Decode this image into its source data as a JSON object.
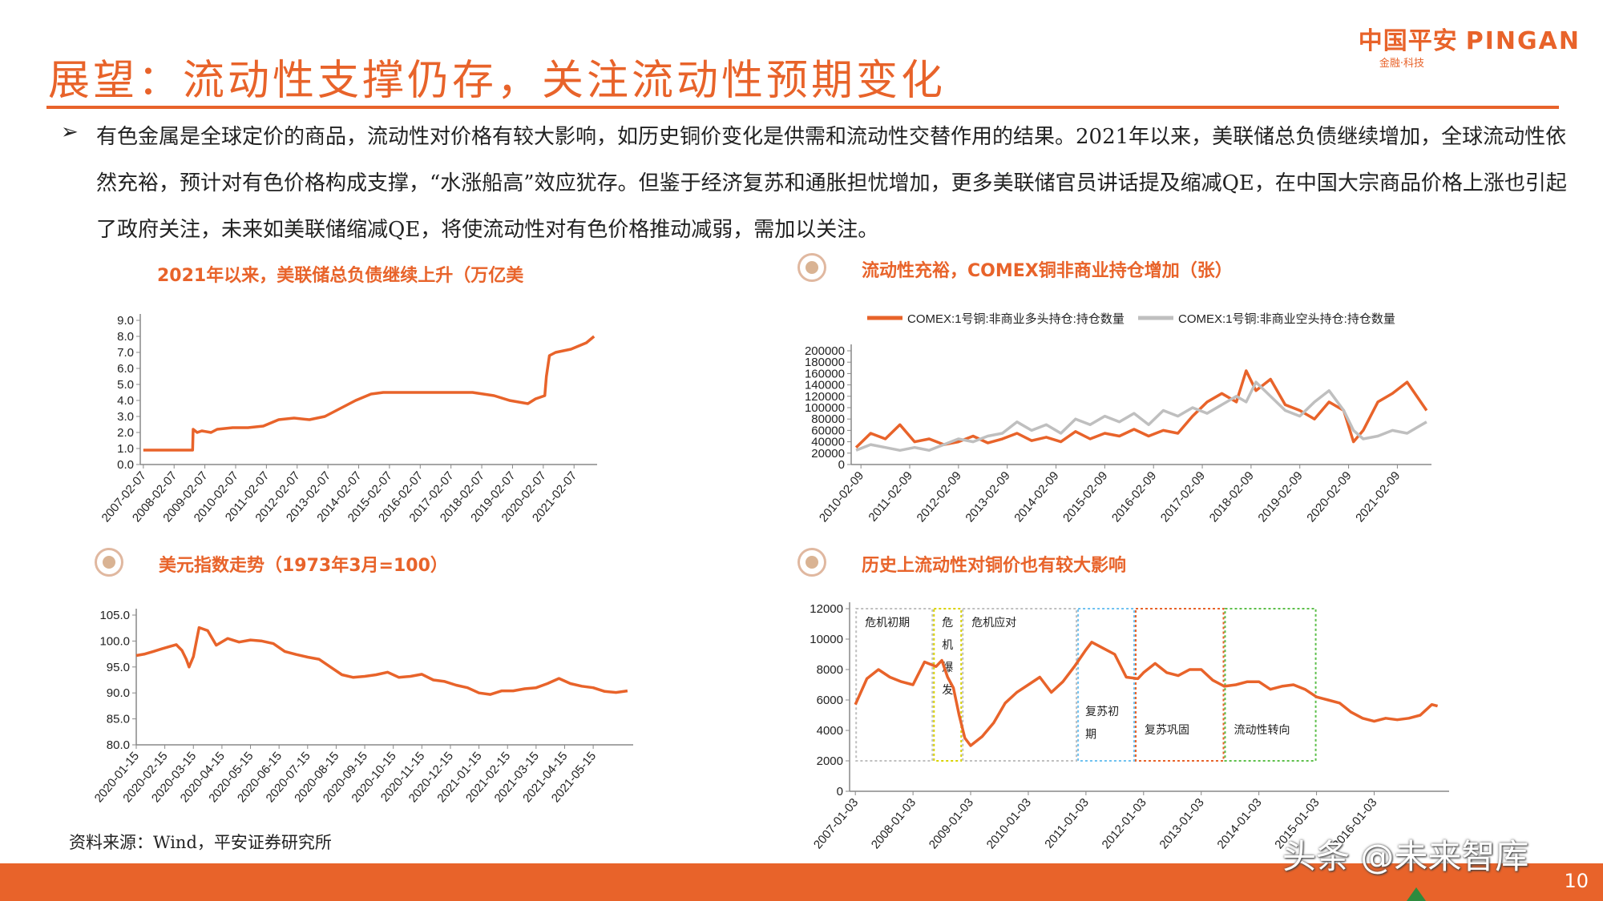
{
  "slide": {
    "title": "展望：流动性支撑仍存，关注流动性预期变化",
    "logo_cn": "中国平安",
    "logo_en": "PINGAN",
    "logo_sub": "金融·科技",
    "bullet_text": "有色金属是全球定价的商品，流动性对价格有较大影响，如历史铜价变化是供需和流动性交替作用的结果。2021年以来，美联储总负债继续增加，全球流动性依然充裕，预计对有色价格构成支撑，“水涨船高”效应犹存。但鉴于经济复苏和通胀担忧增加，更多美联储官员讲话提及缩减QE，在中国大宗商品价格上涨也引起了政府关注，未来如美联储缩减QE，将使流动性对有色价格推动减弱，需加以关注。",
    "source": "资料来源：Wind，平安证券研究所",
    "page_number": "10",
    "watermark": "头条 @未来智库",
    "accent": "#E8632A",
    "gray": "#BFBFBF"
  },
  "panel_titles": {
    "fed": "2021年以来，美联储总负债继续上升（万亿美",
    "comex": "流动性充裕，COMEX铜非商业持仓增加（张）",
    "dxy": "美元指数走势（1973年3月=100）",
    "copper": "历史上流动性对铜价也有较大影响"
  },
  "chart_data": [
    {
      "id": "fed",
      "type": "line",
      "title": "2021年以来，美联储总负债继续上升（万亿美",
      "xlabel": "",
      "ylabel": "",
      "ylim": [
        0,
        9
      ],
      "yticks": [
        "0.0",
        "1.0",
        "2.0",
        "3.0",
        "4.0",
        "5.0",
        "6.0",
        "7.0",
        "8.0",
        "9.0"
      ],
      "xticks": [
        "2007-02-07",
        "2008-02-07",
        "2009-02-07",
        "2010-02-07",
        "2011-02-07",
        "2012-02-07",
        "2013-02-07",
        "2014-02-07",
        "2015-02-07",
        "2016-02-07",
        "2017-02-07",
        "2018-02-07",
        "2019-02-07",
        "2020-02-07",
        "2021-02-07"
      ],
      "x": [
        2007.1,
        2008.0,
        2008.7,
        2008.72,
        2008.85,
        2009.0,
        2009.3,
        2009.5,
        2010.0,
        2010.5,
        2011.0,
        2011.5,
        2012.0,
        2012.5,
        2013.0,
        2013.5,
        2014.0,
        2014.5,
        2014.9,
        2015.5,
        2016.0,
        2017.0,
        2017.8,
        2018.5,
        2019.0,
        2019.6,
        2019.85,
        2020.0,
        2020.15,
        2020.2,
        2020.3,
        2020.5,
        2021.0,
        2021.5,
        2021.75
      ],
      "series": [
        {
          "values": [
            0.9,
            0.9,
            0.9,
            2.2,
            2.0,
            2.1,
            2.0,
            2.2,
            2.3,
            2.3,
            2.4,
            2.8,
            2.9,
            2.8,
            3.0,
            3.5,
            4.0,
            4.4,
            4.5,
            4.5,
            4.5,
            4.5,
            4.5,
            4.3,
            4.0,
            3.8,
            4.1,
            4.2,
            4.3,
            5.5,
            6.8,
            7.0,
            7.2,
            7.6,
            8.0
          ],
          "color": "#E8632A"
        }
      ]
    },
    {
      "id": "comex",
      "type": "line",
      "title": "流动性充裕，COMEX铜非商业持仓增加（张）",
      "xlabel": "",
      "ylabel": "",
      "ylim": [
        0,
        200000
      ],
      "yticks": [
        "0",
        "20000",
        "40000",
        "60000",
        "80000",
        "100000",
        "120000",
        "140000",
        "160000",
        "180000",
        "200000"
      ],
      "xticks": [
        "2010-02-09",
        "2011-02-09",
        "2012-02-09",
        "2013-02-09",
        "2014-02-09",
        "2015-02-09",
        "2016-02-09",
        "2017-02-09",
        "2018-02-09",
        "2019-02-09",
        "2020-02-09",
        "2021-02-09"
      ],
      "legend_placement": "top",
      "x": [
        2010.0,
        2010.3,
        2010.6,
        2010.9,
        2011.2,
        2011.5,
        2011.8,
        2012.1,
        2012.4,
        2012.7,
        2013.0,
        2013.3,
        2013.6,
        2013.9,
        2014.2,
        2014.5,
        2014.8,
        2015.1,
        2015.4,
        2015.7,
        2016.0,
        2016.3,
        2016.6,
        2016.9,
        2017.2,
        2017.5,
        2017.8,
        2018.0,
        2018.2,
        2018.5,
        2018.8,
        2019.1,
        2019.4,
        2019.7,
        2020.0,
        2020.2,
        2020.4,
        2020.7,
        2021.0,
        2021.3,
        2021.5,
        2021.7
      ],
      "series": [
        {
          "name": "COMEX:1号铜:非商业多头持仓:持仓数量",
          "color": "#E8632A",
          "values": [
            30000,
            55000,
            45000,
            70000,
            40000,
            45000,
            35000,
            40000,
            50000,
            38000,
            45000,
            55000,
            42000,
            48000,
            40000,
            58000,
            45000,
            55000,
            50000,
            62000,
            50000,
            60000,
            55000,
            85000,
            110000,
            125000,
            110000,
            165000,
            130000,
            150000,
            105000,
            95000,
            80000,
            110000,
            95000,
            40000,
            60000,
            110000,
            125000,
            145000,
            120000,
            95000
          ]
        },
        {
          "name": "COMEX:1号铜:非商业空头持仓:持仓数量",
          "color": "#BFBFBF",
          "values": [
            25000,
            35000,
            30000,
            25000,
            30000,
            25000,
            35000,
            45000,
            40000,
            50000,
            55000,
            75000,
            60000,
            70000,
            55000,
            80000,
            70000,
            85000,
            75000,
            90000,
            70000,
            95000,
            85000,
            100000,
            90000,
            105000,
            120000,
            110000,
            145000,
            120000,
            95000,
            85000,
            110000,
            130000,
            95000,
            60000,
            45000,
            50000,
            60000,
            55000,
            65000,
            75000
          ]
        }
      ]
    },
    {
      "id": "dxy",
      "type": "line",
      "title": "美元指数走势（1973年3月=100）",
      "xlabel": "",
      "ylabel": "",
      "ylim": [
        80,
        105
      ],
      "yticks": [
        "80.0",
        "85.0",
        "90.0",
        "95.0",
        "100.0",
        "105.0"
      ],
      "xticks": [
        "2020-01-15",
        "2020-02-15",
        "2020-03-15",
        "2020-04-15",
        "2020-05-15",
        "2020-06-15",
        "2020-07-15",
        "2020-08-15",
        "2020-09-15",
        "2020-10-15",
        "2020-11-15",
        "2020-12-15",
        "2021-01-15",
        "2021-02-15",
        "2021-03-15",
        "2021-04-15",
        "2021-05-15"
      ],
      "x": [
        0.0,
        0.3,
        0.6,
        0.9,
        1.2,
        1.4,
        1.6,
        1.75,
        1.85,
        2.0,
        2.2,
        2.5,
        2.8,
        3.2,
        3.6,
        4.0,
        4.4,
        4.8,
        5.2,
        5.6,
        6.0,
        6.4,
        6.8,
        7.2,
        7.6,
        8.0,
        8.4,
        8.8,
        9.2,
        9.6,
        10.0,
        10.4,
        10.8,
        11.2,
        11.6,
        12.0,
        12.4,
        12.8,
        13.2,
        13.6,
        14.0,
        14.4,
        14.8,
        15.2,
        15.6,
        16.0,
        16.4,
        16.8,
        17.2
      ],
      "series": [
        {
          "values": [
            97.2,
            97.5,
            98.0,
            98.5,
            99.0,
            99.3,
            98.2,
            96.5,
            95.0,
            97.0,
            102.6,
            102.0,
            99.2,
            100.5,
            99.8,
            100.2,
            100.0,
            99.5,
            98.0,
            97.4,
            96.9,
            96.5,
            95.0,
            93.5,
            93.0,
            93.2,
            93.5,
            94.0,
            93.0,
            93.2,
            93.6,
            92.5,
            92.2,
            91.5,
            91.0,
            90.0,
            89.7,
            90.4,
            90.4,
            90.8,
            91.0,
            91.8,
            92.8,
            91.8,
            91.3,
            91.0,
            90.3,
            90.1,
            90.4
          ],
          "color": "#E8632A"
        }
      ]
    },
    {
      "id": "copper",
      "type": "line",
      "title": "历史上流动性对铜价也有较大影响",
      "xlabel": "",
      "ylabel": "",
      "ylim": [
        0,
        12000
      ],
      "yticks": [
        "0",
        "2000",
        "4000",
        "6000",
        "8000",
        "10000",
        "12000"
      ],
      "xticks": [
        "2007-01-03",
        "2008-01-03",
        "2009-01-03",
        "2010-01-03",
        "2011-01-03",
        "2012-01-03",
        "2013-01-03",
        "2014-01-03",
        "2015-01-03",
        "2016-01-03"
      ],
      "x": [
        2007.0,
        2007.2,
        2007.4,
        2007.6,
        2007.8,
        2008.0,
        2008.2,
        2008.4,
        2008.5,
        2008.6,
        2008.7,
        2008.8,
        2008.9,
        2009.0,
        2009.2,
        2009.4,
        2009.6,
        2009.8,
        2010.0,
        2010.2,
        2010.4,
        2010.6,
        2010.8,
        2011.0,
        2011.1,
        2011.3,
        2011.5,
        2011.7,
        2011.9,
        2012.0,
        2012.2,
        2012.4,
        2012.6,
        2012.8,
        2013.0,
        2013.2,
        2013.4,
        2013.6,
        2013.8,
        2014.0,
        2014.2,
        2014.4,
        2014.6,
        2014.8,
        2015.0,
        2015.2,
        2015.4,
        2015.6,
        2015.8,
        2016.0,
        2016.2,
        2016.4,
        2016.6,
        2016.8,
        2017.0,
        2017.1
      ],
      "series": [
        {
          "values": [
            5700,
            7400,
            8000,
            7500,
            7200,
            7000,
            8500,
            8200,
            8600,
            7500,
            6800,
            5000,
            3500,
            3000,
            3600,
            4500,
            5800,
            6500,
            7000,
            7500,
            6500,
            7200,
            8200,
            9300,
            9800,
            9400,
            9000,
            7500,
            7400,
            7800,
            8400,
            7800,
            7600,
            8000,
            8000,
            7300,
            6900,
            7000,
            7200,
            7200,
            6700,
            6900,
            7000,
            6700,
            6200,
            6000,
            5800,
            5200,
            4800,
            4600,
            4800,
            4700,
            4800,
            5000,
            5700,
            5600
          ],
          "color": "#E8632A"
        }
      ],
      "annotations": [
        {
          "text": "危机初期",
          "x0": 2007.0,
          "x1": 2008.35,
          "ytop": 12000,
          "color": "#BFBFBF"
        },
        {
          "text": "危机爆发",
          "x0": 2008.35,
          "x1": 2008.85,
          "ytop": 12000,
          "color": "#D9D200"
        },
        {
          "text": "危机应对",
          "x0": 2008.85,
          "x1": 2010.85,
          "ytop": 12000,
          "color": "#BFBFBF"
        },
        {
          "text": "复苏初期",
          "x0": 2010.85,
          "x1": 2011.85,
          "ytop": 12000,
          "color": "#6EC1F0"
        },
        {
          "text": "复苏巩固",
          "x0": 2011.85,
          "x1": 2013.4,
          "ytop": 12000,
          "color": "#E8632A"
        },
        {
          "text": "流动性转向",
          "x0": 2013.4,
          "x1": 2015.0,
          "ytop": 12000,
          "color": "#5CBF4A"
        }
      ]
    }
  ]
}
